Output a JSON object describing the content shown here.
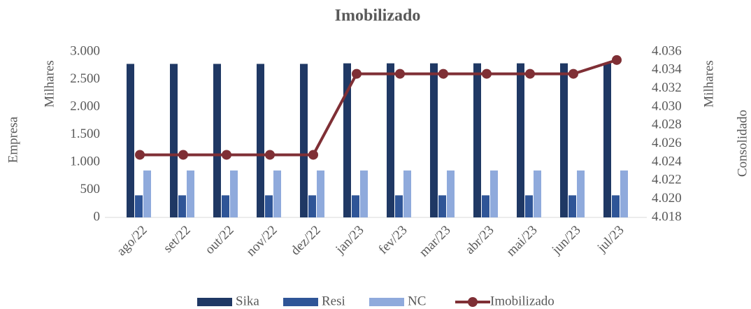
{
  "chart_data": {
    "type": "bar",
    "title": "Imobilizado",
    "categories": [
      "ago/22",
      "set/22",
      "out/22",
      "nov/22",
      "dez/22",
      "jan/23",
      "fev/23",
      "mar/23",
      "abr/23",
      "mai/23",
      "jun/23",
      "jul/23"
    ],
    "series": [
      {
        "name": "Sika",
        "color": "#1f3864",
        "values": [
          2780,
          2780,
          2780,
          2780,
          2780,
          2790,
          2790,
          2790,
          2790,
          2790,
          2790,
          2790
        ]
      },
      {
        "name": "Resi",
        "color": "#2f5597",
        "values": [
          400,
          400,
          400,
          400,
          400,
          400,
          400,
          400,
          400,
          400,
          400,
          400
        ]
      },
      {
        "name": "NC",
        "color": "#8faadc",
        "values": [
          850,
          850,
          850,
          850,
          850,
          850,
          850,
          850,
          850,
          850,
          850,
          850
        ]
      },
      {
        "name": "Imobilizado",
        "color": "#7f2f35",
        "type": "line",
        "axis": "y2",
        "values": [
          4024.8,
          4024.8,
          4024.8,
          4024.8,
          4024.8,
          4033.6,
          4033.6,
          4033.6,
          4033.6,
          4033.6,
          4033.6,
          4035.1
        ]
      }
    ],
    "y_label": "Milhares",
    "y_group_label": "Empresa",
    "y2_label": "Milhares",
    "y2_group_label": "Consolidado",
    "ylim": [
      0,
      3000
    ],
    "yticks": [
      0,
      500,
      {
        "value": 1000,
        "label": "1.000"
      },
      {
        "value": 1500,
        "label": "1.500"
      },
      {
        "value": 2000,
        "label": "2.000"
      },
      {
        "value": 2500,
        "label": "2.500"
      },
      {
        "value": 3000,
        "label": "3.000"
      }
    ],
    "y2lim": [
      4018,
      4036
    ],
    "y2ticks": [
      {
        "value": 4018,
        "label": "4.018"
      },
      {
        "value": 4020,
        "label": "4.020"
      },
      {
        "value": 4022,
        "label": "4.022"
      },
      {
        "value": 4024,
        "label": "4.024"
      },
      {
        "value": 4026,
        "label": "4.026"
      },
      {
        "value": 4028,
        "label": "4.028"
      },
      {
        "value": 4030,
        "label": "4.030"
      },
      {
        "value": 4032,
        "label": "4.032"
      },
      {
        "value": 4034,
        "label": "4.034"
      },
      {
        "value": 4036,
        "label": "4.036"
      }
    ],
    "legend": "bottom"
  }
}
